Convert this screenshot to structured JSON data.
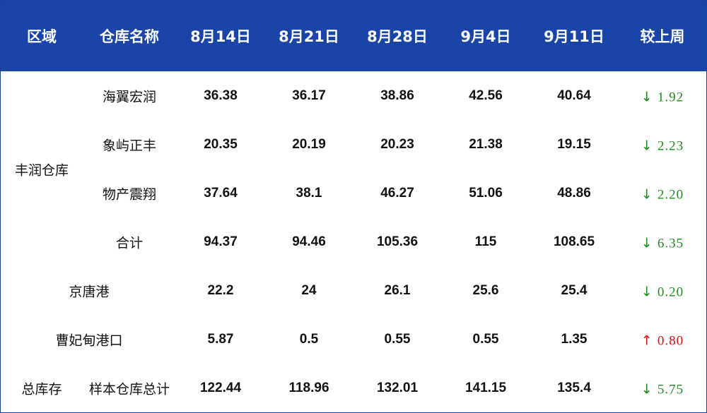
{
  "table": {
    "header": [
      "区域",
      "仓库名称",
      "8月14日",
      "8月21日",
      "8月28日",
      "9月4日",
      "9月11日",
      "较上周"
    ],
    "groups": [
      {
        "region": "丰润仓库",
        "rows": [
          {
            "name": "海翼宏润",
            "values": [
              "36.38",
              "36.17",
              "38.86",
              "42.56",
              "40.64"
            ],
            "change": {
              "arrow": "↓",
              "value": "1.92",
              "color": "#1e8c1e"
            }
          },
          {
            "name": "象屿正丰",
            "values": [
              "20.35",
              "20.19",
              "20.23",
              "21.38",
              "19.15"
            ],
            "change": {
              "arrow": "↓",
              "value": "2.23",
              "color": "#1e8c1e"
            }
          },
          {
            "name": "物产震翔",
            "values": [
              "37.64",
              "38.1",
              "46.27",
              "51.06",
              "48.86"
            ],
            "change": {
              "arrow": "↓",
              "value": "2.20",
              "color": "#1e8c1e"
            }
          },
          {
            "name": "合计",
            "values": [
              "94.37",
              "94.46",
              "105.36",
              "115",
              "108.65"
            ],
            "change": {
              "arrow": "↓",
              "value": "6.35",
              "color": "#1e8c1e"
            }
          }
        ]
      },
      {
        "rows": [
          {
            "name": "京唐港",
            "values": [
              "22.2",
              "24",
              "26.1",
              "25.6",
              "25.4"
            ],
            "change": {
              "arrow": "↓",
              "value": "0.20",
              "color": "#1e8c1e"
            }
          }
        ]
      },
      {
        "rows": [
          {
            "name": "曹妃甸港口",
            "values": [
              "5.87",
              "0.5",
              "0.55",
              "0.55",
              "1.35"
            ],
            "change": {
              "arrow": "↑",
              "value": "0.80",
              "color": "#e01010"
            }
          }
        ]
      },
      {
        "region": "总库存",
        "rows": [
          {
            "name": "样本仓库总计",
            "values": [
              "122.44",
              "118.96",
              "132.01",
              "141.15",
              "135.4"
            ],
            "change": {
              "arrow": "↓",
              "value": "5.75",
              "color": "#1e8c1e"
            }
          }
        ]
      }
    ]
  }
}
